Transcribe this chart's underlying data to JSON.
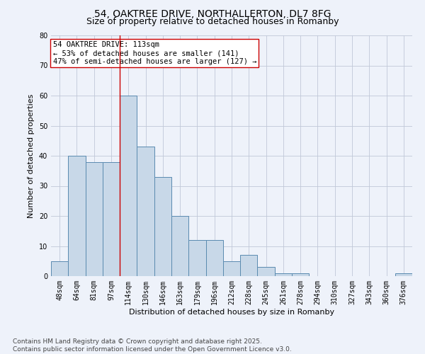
{
  "title1": "54, OAKTREE DRIVE, NORTHALLERTON, DL7 8FG",
  "title2": "Size of property relative to detached houses in Romanby",
  "xlabel": "Distribution of detached houses by size in Romanby",
  "ylabel": "Number of detached properties",
  "categories": [
    "48sqm",
    "64sqm",
    "81sqm",
    "97sqm",
    "114sqm",
    "130sqm",
    "146sqm",
    "163sqm",
    "179sqm",
    "196sqm",
    "212sqm",
    "228sqm",
    "245sqm",
    "261sqm",
    "278sqm",
    "294sqm",
    "310sqm",
    "327sqm",
    "343sqm",
    "360sqm",
    "376sqm"
  ],
  "values": [
    5,
    40,
    38,
    38,
    60,
    43,
    33,
    20,
    12,
    12,
    5,
    7,
    3,
    1,
    1,
    0,
    0,
    0,
    0,
    0,
    1
  ],
  "bar_color": "#c8d8e8",
  "bar_edge_color": "#5a8ab0",
  "bar_edge_width": 0.7,
  "ylim": [
    0,
    80
  ],
  "yticks": [
    0,
    10,
    20,
    30,
    40,
    50,
    60,
    70,
    80
  ],
  "grid_color": "#c0c8d8",
  "background_color": "#eef2fa",
  "vline_x": 3.5,
  "vline_color": "#cc0000",
  "annotation_text": "54 OAKTREE DRIVE: 113sqm\n← 53% of detached houses are smaller (141)\n47% of semi-detached houses are larger (127) →",
  "annotation_box_color": "white",
  "annotation_box_edge": "#cc0000",
  "footer": "Contains HM Land Registry data © Crown copyright and database right 2025.\nContains public sector information licensed under the Open Government Licence v3.0.",
  "title_fontsize": 10,
  "subtitle_fontsize": 9,
  "axis_label_fontsize": 8,
  "tick_fontsize": 7,
  "annotation_fontsize": 7.5,
  "footer_fontsize": 6.5
}
